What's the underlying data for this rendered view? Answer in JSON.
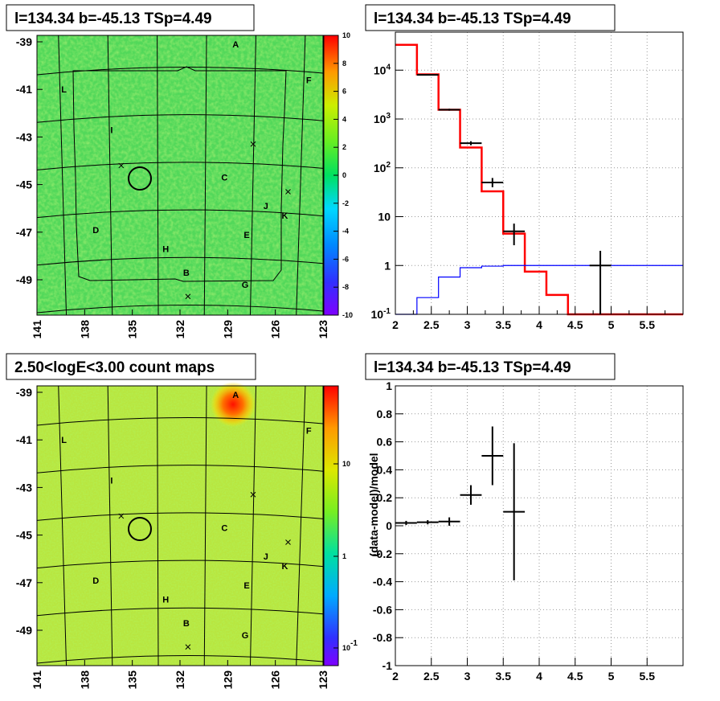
{
  "chart_data": [
    {
      "type": "heatmap",
      "panel": "top-left",
      "title": "l=134.34 b=-45.13 TSp=4.49",
      "x_ticks": [
        "141",
        "138",
        "135",
        "132",
        "129",
        "126",
        "123"
      ],
      "y_ticks": [
        "-39",
        "-41",
        "-43",
        "-45",
        "-47",
        "-49"
      ],
      "colorbar_ticks": [
        "10",
        "8",
        "6",
        "4",
        "2",
        "0",
        "-2",
        "-4",
        "-6",
        "-8",
        "-10"
      ],
      "colorbar_range": [
        -10,
        10
      ],
      "sources": [
        {
          "label": "A",
          "l": 128.5,
          "b": -39.1
        },
        {
          "label": "F",
          "l": 123.9,
          "b": -40.6
        },
        {
          "label": "L",
          "l": 139.3,
          "b": -41.0
        },
        {
          "label": "I",
          "l": 136.3,
          "b": -42.7
        },
        {
          "label": "C",
          "l": 129.2,
          "b": -44.7
        },
        {
          "label": "J",
          "l": 126.6,
          "b": -45.9
        },
        {
          "label": "K",
          "l": 125.4,
          "b": -46.3
        },
        {
          "label": "D",
          "l": 137.3,
          "b": -46.9
        },
        {
          "label": "E",
          "l": 127.8,
          "b": -47.1
        },
        {
          "label": "H",
          "l": 132.9,
          "b": -47.7
        },
        {
          "label": "B",
          "l": 131.6,
          "b": -48.7
        },
        {
          "label": "G",
          "l": 127.9,
          "b": -49.2
        }
      ],
      "markers": [
        {
          "l": 127.4,
          "b": -43.3
        },
        {
          "l": 135.7,
          "b": -44.2
        },
        {
          "l": 125.2,
          "b": -45.3
        },
        {
          "l": 131.5,
          "b": -49.7
        }
      ],
      "target": {
        "l": 134.34,
        "b": -45.13
      }
    },
    {
      "type": "line",
      "panel": "top-right",
      "title": "l=134.34 b=-45.13 TSp=4.49",
      "x_ticks": [
        "2",
        "2.5",
        "3",
        "3.5",
        "4",
        "4.5",
        "5",
        "5.5"
      ],
      "y_ticks": [
        "10^-1",
        "1",
        "10",
        "10^2",
        "10^3",
        "10^4"
      ],
      "xlim": [
        2,
        6
      ],
      "ylim": [
        0.1,
        60000
      ],
      "yscale": "log",
      "grid": true,
      "series": [
        {
          "kind": "step",
          "color": "#ff0000",
          "bin_edges": [
            2.0,
            2.3,
            2.6,
            2.9,
            3.2,
            3.5,
            3.8,
            4.1,
            4.4,
            6.0
          ],
          "values": [
            33000,
            8200,
            1550,
            260,
            33,
            4.5,
            0.75,
            0.25,
            0.1
          ]
        },
        {
          "kind": "step",
          "color": "#0000ff",
          "bin_edges": [
            2.0,
            2.3,
            2.6,
            2.9,
            3.2,
            3.5,
            6.0
          ],
          "values": [
            0.02,
            0.22,
            0.58,
            0.9,
            0.97,
            1.0
          ]
        },
        {
          "kind": "errorbar",
          "color": "#000000",
          "points": [
            {
              "x": 2.45,
              "y": 8000,
              "xerr": 0.15,
              "ylo": 7800,
              "yhi": 8200
            },
            {
              "x": 2.75,
              "y": 1550,
              "xerr": 0.15,
              "ylo": 1480,
              "yhi": 1620
            },
            {
              "x": 3.05,
              "y": 320,
              "xerr": 0.15,
              "ylo": 290,
              "yhi": 350
            },
            {
              "x": 3.35,
              "y": 50,
              "xerr": 0.15,
              "ylo": 40,
              "yhi": 62
            },
            {
              "x": 3.65,
              "y": 5,
              "xerr": 0.15,
              "ylo": 2.6,
              "yhi": 7.2
            },
            {
              "x": 4.85,
              "y": 1.0,
              "xerr": 0.15,
              "ylo": 0.1,
              "yhi": 2.0
            }
          ]
        }
      ]
    },
    {
      "type": "heatmap",
      "panel": "bottom-left",
      "title": "2.50<logE<3.00 count maps",
      "x_ticks": [
        "141",
        "138",
        "135",
        "132",
        "129",
        "126",
        "123"
      ],
      "y_ticks": [
        "-39",
        "-41",
        "-43",
        "-45",
        "-47",
        "-49"
      ],
      "colorbar_ticks": [
        "10",
        "1",
        "10^-1"
      ],
      "colorbar_scale": "log"
    },
    {
      "type": "scatter",
      "panel": "bottom-right",
      "title": "l=134.34 b=-45.13 TSp=4.49",
      "ylabel": "(data-model)/model",
      "x_ticks": [
        "2",
        "2.5",
        "3",
        "3.5",
        "4",
        "4.5",
        "5",
        "5.5"
      ],
      "y_ticks": [
        "1",
        "0.8",
        "0.6",
        "0.4",
        "0.2",
        "0",
        "-0.2",
        "-0.4",
        "-0.6",
        "-0.8",
        "-1"
      ],
      "xlim": [
        2,
        6
      ],
      "ylim": [
        -1,
        1
      ],
      "grid": true,
      "points": [
        {
          "x": 2.15,
          "y": 0.02,
          "xerr": 0.15,
          "yerr": 0.015
        },
        {
          "x": 2.45,
          "y": 0.025,
          "xerr": 0.15,
          "yerr": 0.015
        },
        {
          "x": 2.75,
          "y": 0.03,
          "xerr": 0.15,
          "yerr": 0.03
        },
        {
          "x": 3.05,
          "y": 0.22,
          "xerr": 0.15,
          "yerr": 0.07
        },
        {
          "x": 3.35,
          "y": 0.5,
          "xerr": 0.15,
          "yerr": 0.21
        },
        {
          "x": 3.65,
          "y": 0.1,
          "xerr": 0.15,
          "yerr": 0.49
        }
      ]
    }
  ]
}
